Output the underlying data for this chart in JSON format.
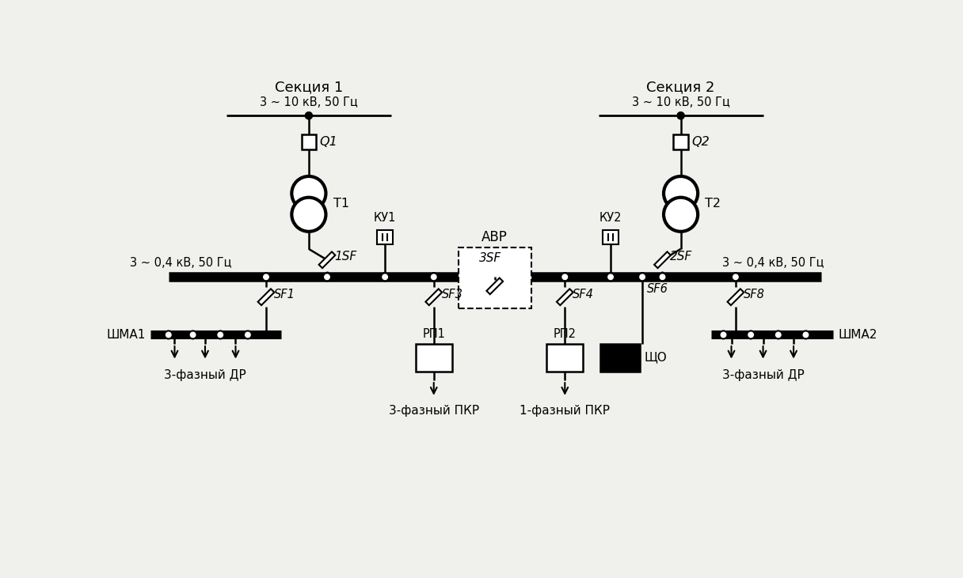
{
  "bg_color": "#f0f0ec",
  "section1_label": "Секция 1",
  "section2_label": "Секция 2",
  "voltage_top": "3 ~ 10 кВ, 50 Гц",
  "voltage_bottom_left": "3 ~ 0,4 кВ, 50 Гц",
  "voltage_bottom_right": "3 ~ 0,4 кВ, 50 Гц",
  "label_Q1": "Q1",
  "label_Q2": "Q2",
  "label_T1": "T1",
  "label_T2": "T2",
  "label_KY1": "КУ1",
  "label_KY2": "КУ2",
  "label_AVR": "АВР",
  "label_1SF": "1SF",
  "label_2SF": "2SF",
  "label_3SF": "3SF",
  "label_SF1": "SF1",
  "label_SF3": "SF3",
  "label_SF4": "SF4",
  "label_SF6": "SF6",
  "label_SF8": "SF8",
  "label_SHM1": "ШМА1",
  "label_SHM2": "ШМА2",
  "label_RP1": "РП1",
  "label_RP2": "РП2",
  "label_SHO": "ЩО",
  "label_3faz_dr1": "3-фазный ДР",
  "label_3faz_dr2": "3-фазный ДР",
  "label_3faz_pkr": "3-фазный ПКР",
  "label_1faz_pkr": "1-фазный ПКР"
}
